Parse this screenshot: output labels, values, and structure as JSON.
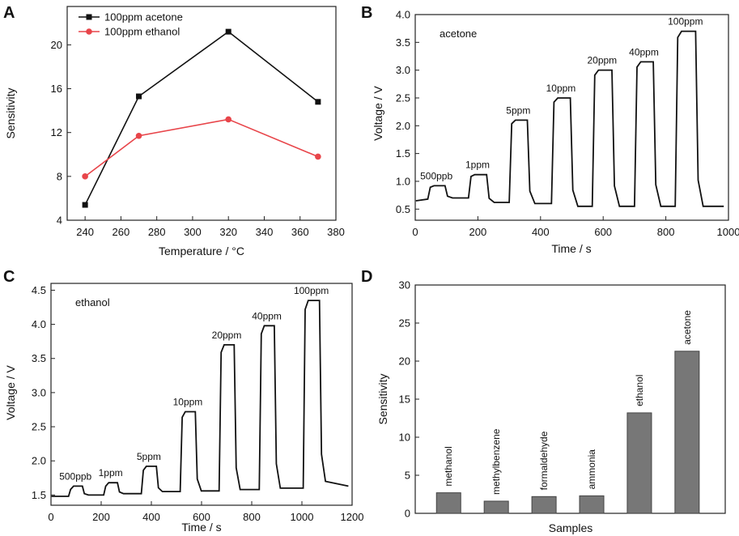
{
  "figure_title": "",
  "chart_data": [
    {
      "panel": "A",
      "type": "line",
      "title": "",
      "xlabel": "Temperature / °C",
      "ylabel": "Sensitivity",
      "xlim": [
        230,
        380
      ],
      "ylim": [
        4,
        23.5
      ],
      "xticks": [
        240,
        260,
        280,
        300,
        320,
        340,
        360,
        380
      ],
      "yticks": [
        4,
        8,
        12,
        16,
        20
      ],
      "legend_position": "top-left",
      "series": [
        {
          "name": "100ppm acetone",
          "color": "#111111",
          "marker": "square",
          "x": [
            240,
            270,
            320,
            370
          ],
          "y": [
            5.4,
            15.3,
            21.2,
            14.8
          ]
        },
        {
          "name": "100ppm ethanol",
          "color": "#e8454a",
          "marker": "circle",
          "x": [
            240,
            270,
            320,
            370
          ],
          "y": [
            8.0,
            11.7,
            13.2,
            9.8
          ]
        }
      ]
    },
    {
      "panel": "B",
      "type": "line",
      "title": "acetone",
      "xlabel": "Time / s",
      "ylabel": "Voltage / V",
      "xlim": [
        0,
        1000
      ],
      "ylim": [
        0.3,
        4.0
      ],
      "xticks": [
        0,
        200,
        400,
        600,
        800,
        1000
      ],
      "yticks": [
        0.5,
        1.0,
        1.5,
        2.0,
        2.5,
        3.0,
        3.5,
        4.0
      ],
      "baseline": 0.65,
      "pulses": [
        {
          "label": "500ppb",
          "start": 40,
          "end": 95,
          "level": 0.92,
          "base_before": 0.68,
          "base_after": 0.7
        },
        {
          "label": "1ppm",
          "start": 170,
          "end": 228,
          "level": 1.12,
          "base_before": 0.7,
          "base_after": 0.62
        },
        {
          "label": "5ppm",
          "start": 300,
          "end": 358,
          "level": 2.1,
          "base_before": 0.62,
          "base_after": 0.6
        },
        {
          "label": "10ppm",
          "start": 435,
          "end": 495,
          "level": 2.5,
          "base_before": 0.6,
          "base_after": 0.55
        },
        {
          "label": "20ppm",
          "start": 565,
          "end": 628,
          "level": 3.0,
          "base_before": 0.55,
          "base_after": 0.55
        },
        {
          "label": "40ppm",
          "start": 700,
          "end": 760,
          "level": 3.15,
          "base_before": 0.55,
          "base_after": 0.55
        },
        {
          "label": "100ppm",
          "start": 830,
          "end": 895,
          "level": 3.7,
          "base_before": 0.55,
          "base_after": 0.55
        }
      ],
      "x_end": 985,
      "y_end": 0.55
    },
    {
      "panel": "C",
      "type": "line",
      "title": "ethanol",
      "xlabel": "Time / s",
      "ylabel": "Voltage / V",
      "xlim": [
        0,
        1200
      ],
      "ylim": [
        1.35,
        4.6
      ],
      "xticks": [
        0,
        200,
        400,
        600,
        800,
        1000,
        1200
      ],
      "yticks": [
        1.5,
        2.0,
        2.5,
        3.0,
        3.5,
        4.0,
        4.5
      ],
      "baseline": 1.48,
      "pulses": [
        {
          "label": "500ppb",
          "start": 70,
          "end": 125,
          "level": 1.63,
          "base_before": 1.48,
          "base_after": 1.5
        },
        {
          "label": "1ppm",
          "start": 210,
          "end": 265,
          "level": 1.68,
          "base_before": 1.5,
          "base_after": 1.52
        },
        {
          "label": "5ppm",
          "start": 360,
          "end": 420,
          "level": 1.92,
          "base_before": 1.52,
          "base_after": 1.55
        },
        {
          "label": "10ppm",
          "start": 515,
          "end": 575,
          "level": 2.72,
          "base_before": 1.55,
          "base_after": 1.56
        },
        {
          "label": "20ppm",
          "start": 670,
          "end": 730,
          "level": 3.7,
          "base_before": 1.56,
          "base_after": 1.58
        },
        {
          "label": "40ppm",
          "start": 830,
          "end": 890,
          "level": 3.98,
          "base_before": 1.58,
          "base_after": 1.6
        },
        {
          "label": "100ppm",
          "start": 1005,
          "end": 1070,
          "level": 4.35,
          "base_before": 1.6,
          "base_after": 1.7
        }
      ],
      "x_end": 1185,
      "y_end": 1.63
    },
    {
      "panel": "D",
      "type": "bar",
      "title": "",
      "xlabel": "Samples",
      "ylabel": "Sensitivity",
      "ylim": [
        0,
        30
      ],
      "yticks": [
        0,
        5,
        10,
        15,
        20,
        25,
        30
      ],
      "categories": [
        "methanol",
        "methylbenzene",
        "formaldehyde",
        "ammonia",
        "ethanol",
        "acetone"
      ],
      "values": [
        2.7,
        1.6,
        2.2,
        2.3,
        13.2,
        21.3
      ],
      "bar_color": "#777777"
    }
  ]
}
